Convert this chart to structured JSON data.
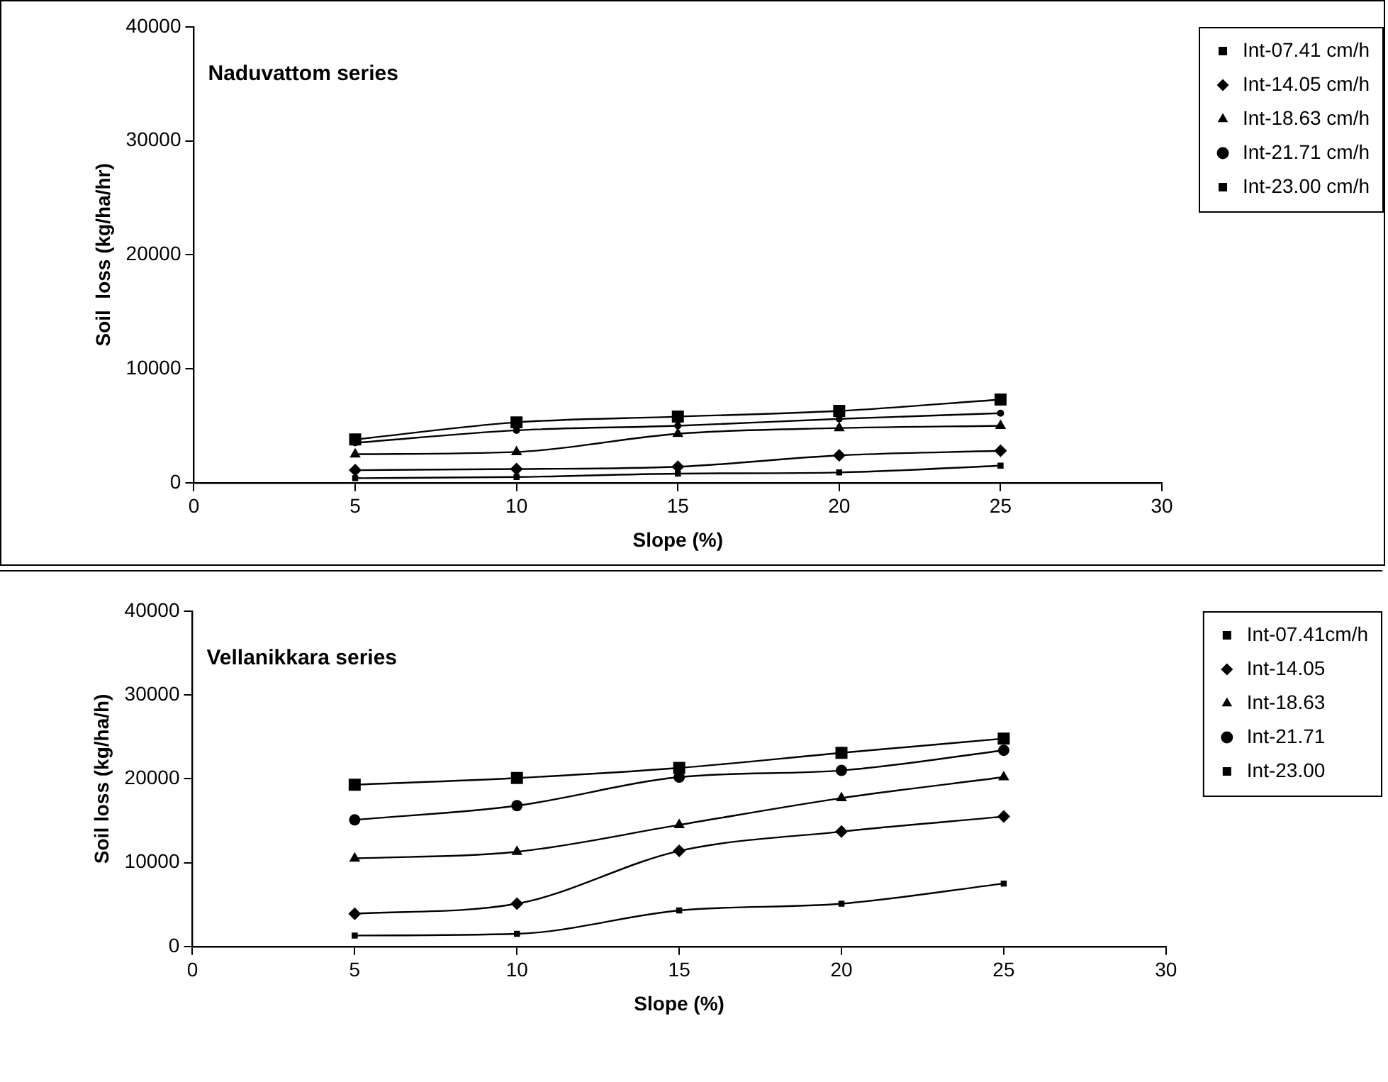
{
  "chart_data": [
    {
      "type": "line",
      "title": "Naduvattom series",
      "xlabel": "Slope (%)",
      "ylabel": "Soil  loss (kg/ha/hr)",
      "x": [
        5,
        10,
        15,
        20,
        25
      ],
      "xlim": [
        0,
        30
      ],
      "xticks": [
        0,
        5,
        10,
        15,
        20,
        25,
        30
      ],
      "ylim": [
        0,
        40000
      ],
      "yticks": [
        0,
        10000,
        20000,
        30000,
        40000
      ],
      "grid": false,
      "legend": "top right",
      "series": [
        {
          "name": "Int-07.41 cm/h",
          "color": "#000000",
          "marker": "square",
          "values": [
            400,
            500,
            800,
            900,
            1500
          ]
        },
        {
          "name": "Int-14.05 cm/h",
          "color": "#000000",
          "marker": "diamond",
          "values": [
            1100,
            1200,
            1400,
            2400,
            2800
          ]
        },
        {
          "name": "Int-18.63 cm/h",
          "color": "#000000",
          "marker": "triangle",
          "values": [
            2500,
            2700,
            4300,
            4800,
            5000
          ]
        },
        {
          "name": "Int-21.71 cm/h",
          "color": "#000000",
          "marker": "circle",
          "values": [
            3500,
            4600,
            5000,
            5600,
            6100
          ]
        },
        {
          "name": "Int-23.00 cm/h",
          "color": "#000000",
          "marker": "square",
          "values": [
            3800,
            5300,
            5800,
            6300,
            7300
          ]
        }
      ]
    },
    {
      "type": "line",
      "title": "Vellanikkara series",
      "xlabel": "Slope (%)",
      "ylabel": "Soil loss (kg/ha/h)",
      "x": [
        5,
        10,
        15,
        20,
        25
      ],
      "xlim": [
        0,
        30
      ],
      "xticks": [
        0,
        5,
        10,
        15,
        20,
        25,
        30
      ],
      "ylim": [
        0,
        40000
      ],
      "yticks": [
        0,
        10000,
        20000,
        30000,
        40000
      ],
      "grid": false,
      "legend": "top right",
      "series": [
        {
          "name": "Int-07.41cm/h",
          "color": "#000000",
          "marker": "square",
          "values": [
            1300,
            1500,
            4300,
            5100,
            7500
          ]
        },
        {
          "name": "Int-14.05",
          "color": "#000000",
          "marker": "diamond",
          "values": [
            3900,
            5100,
            11400,
            13700,
            15500
          ]
        },
        {
          "name": "Int-18.63",
          "color": "#000000",
          "marker": "triangle",
          "values": [
            10500,
            11300,
            14500,
            17700,
            20200
          ]
        },
        {
          "name": "Int-21.71",
          "color": "#000000",
          "marker": "circle",
          "values": [
            15100,
            16800,
            20200,
            21000,
            23400
          ]
        },
        {
          "name": "Int-23.00",
          "color": "#000000",
          "marker": "square",
          "values": [
            19300,
            20100,
            21300,
            23100,
            24800
          ]
        }
      ]
    }
  ]
}
